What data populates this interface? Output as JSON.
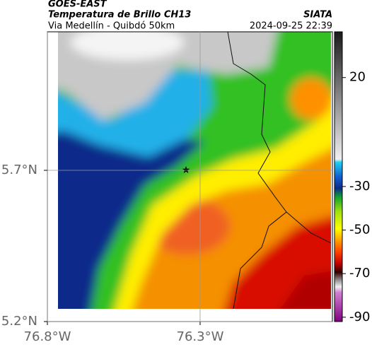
{
  "header": {
    "title": "GOES-EAST",
    "subtitle": "Temperatura de Brillo CH13",
    "location": "Via Medellín - Quibdó 50km",
    "source": "SIATA",
    "timestamp": "2024-09-25 22:39"
  },
  "map": {
    "xlim": [
      -76.8,
      -75.867
    ],
    "ylim": [
      5.2,
      6.158
    ],
    "xticks": [
      {
        "value": -76.8,
        "label": "76.8°W"
      },
      {
        "value": -76.3,
        "label": "76.3°W"
      }
    ],
    "yticks": [
      {
        "value": 5.7,
        "label": "5.7°N"
      },
      {
        "value": 5.2,
        "label": "5.2°N"
      }
    ],
    "grid": true
  },
  "colorbar": {
    "clim": [
      -92,
      41
    ],
    "ticks": [
      20,
      -30,
      -50,
      -70,
      -90
    ]
  }
}
